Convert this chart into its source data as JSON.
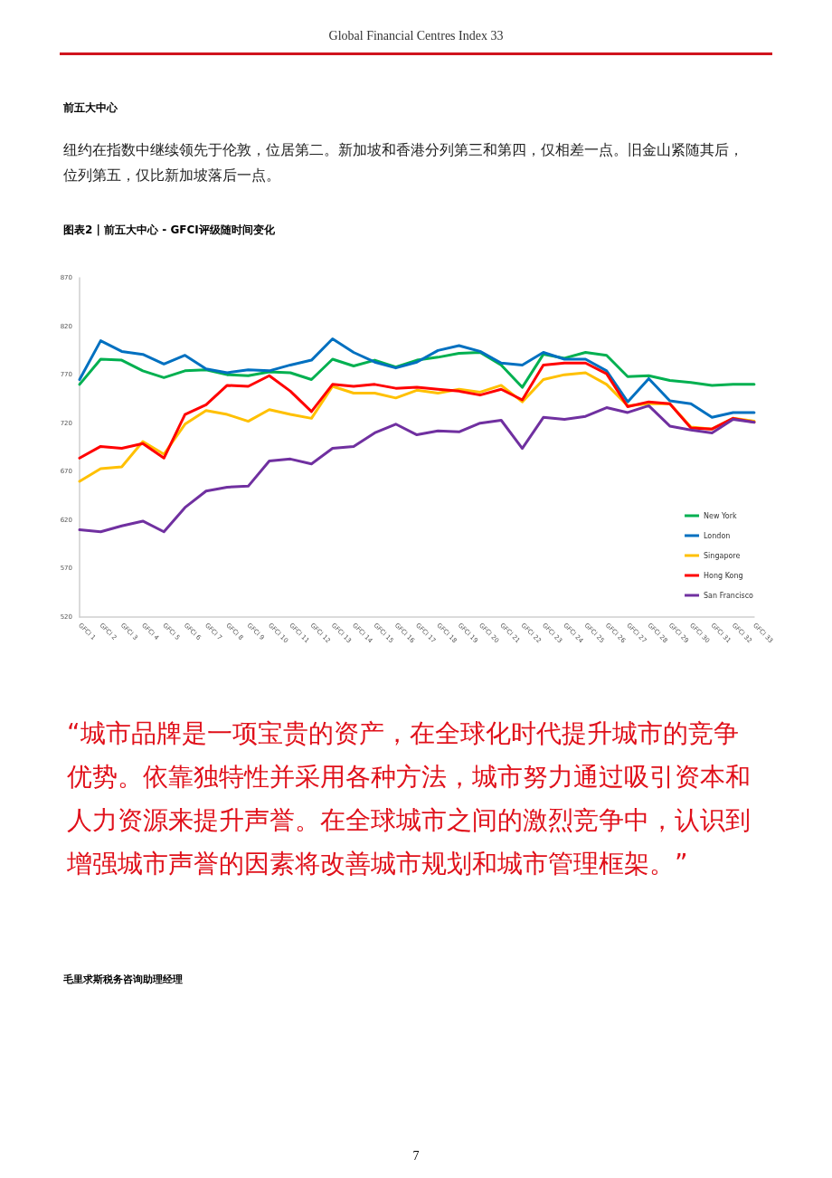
{
  "chart_data": {
    "type": "line",
    "title": "图表2 | 前五大中心 - GFCI评级随时间变化",
    "annotations": [
      "Global Financial Centres Index 33",
      "前五大中心",
      "纽约在指数中继续领先于伦敦，位居第二。新加坡和香港分列第三和第四，仅相差一点。旧金山紧随其后，位列第五，仅比新加坡落后一点。",
      "“城市品牌是一项宝贵的资产，在全球化时代提升城市的竞争优势。依靠独特性并采用各种方法，城市努力通过吸引资本和人力资源来提升声誉。在全球城市之间的激烈竞争中，认识到增强城市声誉的因素将改善城市规划和城市管理框架。”",
      "毛里求斯税务咨询助理经理",
      "7"
    ],
    "categories": [
      "GFCI 1",
      "GFCI 2",
      "GFCI 3",
      "GFCI 4",
      "GFCI 5",
      "GFCI 6",
      "GFCI 7",
      "GFCI 8",
      "GFCI 9",
      "GFCI 10",
      "GFCI 11",
      "GFCI 12",
      "GFCI 13",
      "GFCI 14",
      "GFCI 15",
      "GFCI 16",
      "GFCI 17",
      "GFCI 18",
      "GFCI 19",
      "GFCI 20",
      "GFCI 21",
      "GFCI 22",
      "GFCI 23",
      "GFCI 24",
      "GFCI 25",
      "GFCI 26",
      "GFCI 27",
      "GFCI 28",
      "GFCI 29",
      "GFCI 30",
      "GFCI 31",
      "GFCI 32",
      "GFCI 33"
    ],
    "series": [
      {
        "name": "New York",
        "color": "#00b050",
        "values": [
          760,
          786,
          785,
          774,
          767,
          774,
          775,
          770,
          769,
          773,
          772,
          765,
          786,
          779,
          785,
          778,
          785,
          788,
          792,
          793,
          780,
          757,
          791,
          787,
          793,
          790,
          768,
          769,
          764,
          762,
          759,
          760,
          760
        ]
      },
      {
        "name": "London",
        "color": "#0070c0",
        "values": [
          765,
          805,
          794,
          791,
          781,
          790,
          776,
          772,
          775,
          774,
          780,
          785,
          807,
          793,
          783,
          777,
          783,
          795,
          800,
          794,
          782,
          780,
          793,
          786,
          786,
          774,
          742,
          766,
          743,
          740,
          726,
          731,
          731
        ]
      },
      {
        "name": "Singapore",
        "color": "#ffc000",
        "values": [
          660,
          673,
          675,
          701,
          688,
          719,
          733,
          729,
          722,
          734,
          729,
          725,
          758,
          751,
          751,
          746,
          754,
          751,
          755,
          752,
          759,
          742,
          765,
          770,
          772,
          760,
          738,
          740,
          740,
          716,
          714,
          725,
          722
        ]
      },
      {
        "name": "Hong Kong",
        "color": "#ff0000",
        "values": [
          684,
          696,
          694,
          699,
          684,
          729,
          739,
          759,
          758,
          769,
          753,
          732,
          760,
          758,
          760,
          756,
          757,
          755,
          753,
          749,
          755,
          744,
          780,
          782,
          782,
          771,
          737,
          742,
          740,
          715,
          714,
          725,
          721
        ]
      },
      {
        "name": "San Francisco",
        "color": "#7030a0",
        "values": [
          610,
          608,
          614,
          619,
          608,
          633,
          650,
          654,
          655,
          681,
          683,
          678,
          694,
          696,
          710,
          719,
          708,
          712,
          711,
          720,
          723,
          694,
          726,
          724,
          727,
          736,
          731,
          738,
          717,
          713,
          710,
          724,
          721
        ]
      }
    ],
    "ylim": [
      520,
      870
    ],
    "yticks": [
      520,
      570,
      620,
      670,
      720,
      770,
      820,
      870
    ],
    "grid": false,
    "legend": "bottom right",
    "marker": "none",
    "line_style": "solid"
  }
}
